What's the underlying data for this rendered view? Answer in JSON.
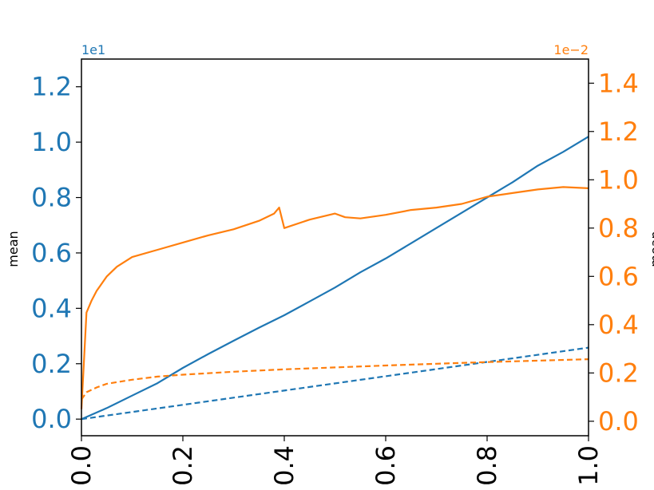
{
  "chart_data": {
    "type": "line",
    "title": "",
    "xlabel": "",
    "x_ticks": [
      "0.0",
      "0.2",
      "0.4",
      "0.6",
      "0.8",
      "1.0"
    ],
    "xlim": [
      0,
      1
    ],
    "left_axis": {
      "label": "mean",
      "offset_text": "1e1",
      "ticks": [
        "0.0",
        "0.2",
        "0.4",
        "0.6",
        "0.8",
        "1.0",
        "1.2"
      ],
      "ylim": [
        -0.06,
        1.3
      ],
      "color": "#1f77b4"
    },
    "right_axis": {
      "label": "mean",
      "offset_text": "1e−2",
      "ticks": [
        "0.0",
        "0.2",
        "0.4",
        "0.6",
        "0.8",
        "1.0",
        "1.2",
        "1.4"
      ],
      "ylim": [
        -0.06,
        1.5
      ],
      "color": "#ff7f0e"
    },
    "series": [
      {
        "axis": "left",
        "color": "#1f77b4",
        "style": "solid",
        "points": [
          [
            0,
            0
          ],
          [
            0.05,
            0.04
          ],
          [
            0.1,
            0.085
          ],
          [
            0.15,
            0.13
          ],
          [
            0.2,
            0.185
          ],
          [
            0.25,
            0.235
          ],
          [
            0.3,
            0.283
          ],
          [
            0.35,
            0.33
          ],
          [
            0.4,
            0.375
          ],
          [
            0.45,
            0.425
          ],
          [
            0.5,
            0.475
          ],
          [
            0.55,
            0.53
          ],
          [
            0.6,
            0.58
          ],
          [
            0.65,
            0.635
          ],
          [
            0.7,
            0.69
          ],
          [
            0.75,
            0.745
          ],
          [
            0.8,
            0.8
          ],
          [
            0.85,
            0.855
          ],
          [
            0.9,
            0.915
          ],
          [
            0.95,
            0.965
          ],
          [
            1.0,
            1.02
          ]
        ]
      },
      {
        "axis": "left",
        "color": "#1f77b4",
        "style": "dashed",
        "points": [
          [
            0,
            0
          ],
          [
            1.0,
            0.258
          ]
        ]
      },
      {
        "axis": "right",
        "color": "#ff7f0e",
        "style": "solid",
        "points": [
          [
            0,
            0.05
          ],
          [
            0.01,
            0.45
          ],
          [
            0.02,
            0.5
          ],
          [
            0.03,
            0.54
          ],
          [
            0.05,
            0.6
          ],
          [
            0.07,
            0.64
          ],
          [
            0.1,
            0.68
          ],
          [
            0.15,
            0.71
          ],
          [
            0.2,
            0.74
          ],
          [
            0.25,
            0.77
          ],
          [
            0.3,
            0.795
          ],
          [
            0.35,
            0.83
          ],
          [
            0.38,
            0.86
          ],
          [
            0.39,
            0.885
          ],
          [
            0.4,
            0.8
          ],
          [
            0.45,
            0.835
          ],
          [
            0.5,
            0.86
          ],
          [
            0.52,
            0.845
          ],
          [
            0.55,
            0.84
          ],
          [
            0.6,
            0.855
          ],
          [
            0.65,
            0.875
          ],
          [
            0.7,
            0.885
          ],
          [
            0.75,
            0.9
          ],
          [
            0.8,
            0.93
          ],
          [
            0.85,
            0.945
          ],
          [
            0.9,
            0.96
          ],
          [
            0.95,
            0.97
          ],
          [
            1.0,
            0.965
          ]
        ]
      },
      {
        "axis": "right",
        "color": "#ff7f0e",
        "style": "dashed",
        "points": [
          [
            0,
            0.09
          ],
          [
            0.01,
            0.12
          ],
          [
            0.03,
            0.14
          ],
          [
            0.05,
            0.155
          ],
          [
            0.1,
            0.172
          ],
          [
            0.15,
            0.185
          ],
          [
            0.2,
            0.193
          ],
          [
            0.3,
            0.205
          ],
          [
            0.4,
            0.215
          ],
          [
            0.5,
            0.223
          ],
          [
            0.6,
            0.231
          ],
          [
            0.7,
            0.238
          ],
          [
            0.8,
            0.245
          ],
          [
            0.9,
            0.251
          ],
          [
            1.0,
            0.257
          ]
        ]
      }
    ],
    "grid": false,
    "legend": "none"
  }
}
